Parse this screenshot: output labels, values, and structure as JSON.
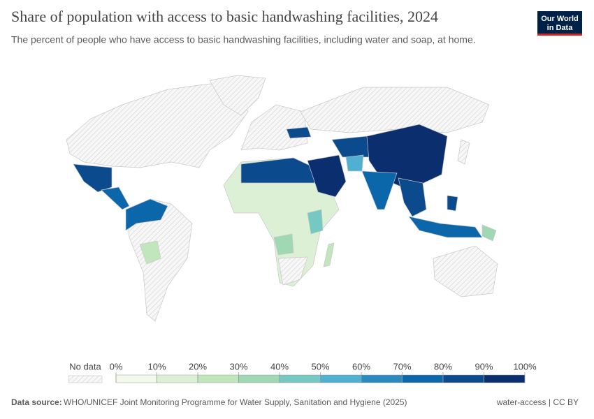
{
  "header": {
    "title": "Share of population with access to basic handwashing facilities, 2024",
    "subtitle": "The percent of people who have access to basic handwashing facilities, including water and soap, at home.",
    "logo": [
      "Our World",
      "in Data"
    ]
  },
  "legend": {
    "no_data": "No data",
    "colors": [
      "#f3fae9",
      "#dbf0d4",
      "#c1e5bd",
      "#a0d8b4",
      "#76c8c3",
      "#4fb0d2",
      "#2b8bbf",
      "#0b66aa",
      "#0b4a8c",
      "#0a2e6e"
    ],
    "ticks": [
      {
        "value": 0,
        "label": "0%"
      },
      {
        "value": 10,
        "label": "10%"
      },
      {
        "value": 20,
        "label": "20%"
      },
      {
        "value": 30,
        "label": "30%"
      },
      {
        "value": 40,
        "label": "40%"
      },
      {
        "value": 50,
        "label": "50%"
      },
      {
        "value": 60,
        "label": "60%"
      },
      {
        "value": 70,
        "label": "70%"
      },
      {
        "value": 80,
        "label": "80%"
      },
      {
        "value": 90,
        "label": "90%"
      },
      {
        "value": 100,
        "label": "100%"
      }
    ]
  },
  "footer": {
    "source_label": "Data source:",
    "source": "WHO/UNICEF Joint Monitoring Programme for Water Supply, Sanitation and Hygiene (2025)",
    "right": "water-access | CC BY"
  }
}
